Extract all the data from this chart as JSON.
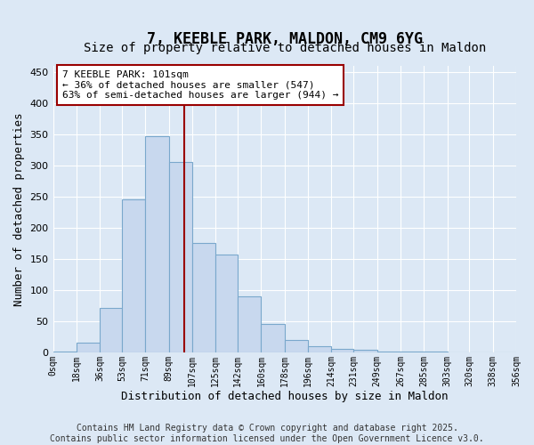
{
  "title": "7, KEEBLE PARK, MALDON, CM9 6YG",
  "subtitle": "Size of property relative to detached houses in Maldon",
  "xlabel": "Distribution of detached houses by size in Maldon",
  "ylabel": "Number of detached properties",
  "bar_color": "#c8d8ee",
  "bar_edge_color": "#7aa8cc",
  "vline_color": "#990000",
  "vline_x": 101,
  "annotation_text": "7 KEEBLE PARK: 101sqm\n← 36% of detached houses are smaller (547)\n63% of semi-detached houses are larger (944) →",
  "footer_line1": "Contains HM Land Registry data © Crown copyright and database right 2025.",
  "footer_line2": "Contains public sector information licensed under the Open Government Licence v3.0.",
  "bins": [
    0,
    18,
    36,
    53,
    71,
    89,
    107,
    125,
    142,
    160,
    178,
    196,
    214,
    231,
    249,
    267,
    285,
    303,
    320,
    338,
    356
  ],
  "counts": [
    2,
    15,
    72,
    245,
    347,
    305,
    175,
    157,
    90,
    45,
    20,
    10,
    6,
    4,
    2,
    1,
    1,
    0,
    0,
    0
  ],
  "ylim": [
    0,
    460
  ],
  "yticks": [
    0,
    50,
    100,
    150,
    200,
    250,
    300,
    350,
    400,
    450
  ],
  "bg_color": "#dce8f5",
  "grid_color": "#ffffff",
  "title_fontsize": 12,
  "subtitle_fontsize": 10,
  "axis_label_fontsize": 9,
  "tick_fontsize": 8,
  "footer_fontsize": 7
}
